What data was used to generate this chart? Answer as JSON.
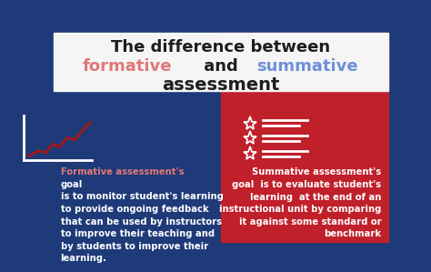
{
  "bg_left": "#1e3a78",
  "bg_right": "#c0202a",
  "title_line1": "The difference between",
  "title_formative": "formative",
  "title_and": " and ",
  "title_summative": "summative",
  "title_line3": "assessment",
  "title_color": "#ffffff",
  "formative_color": "#e07878",
  "summative_color": "#7090d8",
  "left_highlight": "#e07878",
  "left_text_color": "#ffffff",
  "right_text_color": "#ffffff",
  "title_fontsize": 13,
  "body_fontsize": 7.2,
  "left_highlight_word": "Formative assessment's",
  "left_rest": "goal\nis to monitor student's learning\nto provide ongoing feedback\nthat can be used by instructors\nto improve their teaching and\nby students to improve their\nlearning.",
  "right_body": "Summative assessment's\ngoal  is to evaluate student's\nlearning  at the end of an\ninstructional unit by comparing\nit against some standard or\nbenchmark"
}
